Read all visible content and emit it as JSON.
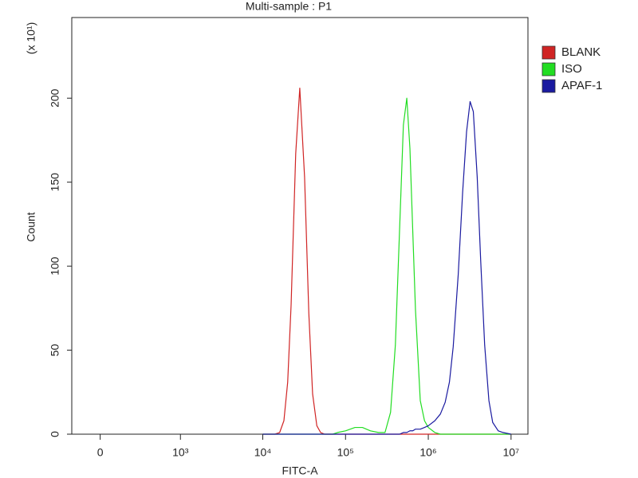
{
  "chart_data": {
    "type": "histogram-overlay",
    "title": "Multi-sample : P1",
    "x_label": "FITC-A",
    "y_label": "Count",
    "y_multiplier": "(x 10¹)",
    "xscale": "biexponential",
    "xlim": [
      -190,
      16000000
    ],
    "xticks": [
      0,
      {
        "value": 1000,
        "label": "10³"
      },
      {
        "value": 10000,
        "label": "10⁴"
      },
      {
        "value": 100000,
        "label": "10⁵"
      },
      {
        "value": 1000000,
        "label": "10⁶"
      },
      {
        "value": 10000000,
        "label": "10⁷"
      }
    ],
    "ylim": [
      0,
      248
    ],
    "yticks": [
      0,
      50,
      100,
      150,
      200
    ],
    "legend": "upper right",
    "x": [
      10000,
      12000,
      14000,
      16000,
      18000,
      20000,
      22000,
      25000,
      28000,
      32000,
      36000,
      40000,
      45000,
      50000,
      56000,
      63000,
      70000,
      80000,
      100000,
      130000,
      160000,
      200000,
      250000,
      300000,
      350000,
      400000,
      450000,
      500000,
      550000,
      600000,
      650000,
      700000,
      800000,
      900000,
      1000000,
      1200000,
      1400000,
      1600000,
      1800000,
      2000000,
      2300000,
      2600000,
      2900000,
      3200000,
      3500000,
      3900000,
      4300000,
      4800000,
      5400000,
      6000000,
      7000000,
      8000000,
      10000000
    ],
    "series": [
      {
        "name": "BLANK",
        "color": "#d02424",
        "values": [
          0,
          0,
          0,
          1,
          8,
          31,
          77,
          167,
          206,
          153,
          72,
          24,
          5,
          1,
          0,
          0,
          0,
          0,
          0,
          0,
          0,
          0,
          0,
          0,
          0,
          0,
          0,
          0,
          0,
          0,
          0,
          0,
          0,
          0,
          0,
          0,
          0,
          0,
          0,
          0,
          0,
          0,
          0,
          0,
          0,
          0,
          0,
          0,
          0,
          0,
          0,
          0,
          0
        ]
      },
      {
        "name": "ISO",
        "color": "#22dd22",
        "values": [
          0,
          0,
          0,
          0,
          0,
          0,
          0,
          0,
          0,
          0,
          0,
          0,
          0,
          0,
          0,
          0,
          0,
          1,
          2,
          4,
          4,
          2,
          1,
          1,
          13,
          53,
          122,
          184,
          200,
          170,
          120,
          74,
          20,
          8,
          4,
          1,
          0,
          0,
          0,
          0,
          0,
          0,
          0,
          0,
          0,
          0,
          0,
          0,
          0,
          0,
          0,
          0,
          0
        ]
      },
      {
        "name": "APAF-1",
        "color": "#1a1aa0",
        "values": [
          0,
          0,
          0,
          0,
          0,
          0,
          0,
          0,
          0,
          0,
          0,
          0,
          0,
          0,
          0,
          0,
          0,
          0,
          0,
          0,
          0,
          0,
          0,
          0,
          0,
          0,
          0,
          1,
          1,
          2,
          2,
          3,
          3,
          4,
          5,
          8,
          12,
          19,
          31,
          52,
          95,
          144,
          180,
          198,
          192,
          153,
          103,
          53,
          20,
          7,
          2,
          1,
          0
        ]
      }
    ]
  }
}
